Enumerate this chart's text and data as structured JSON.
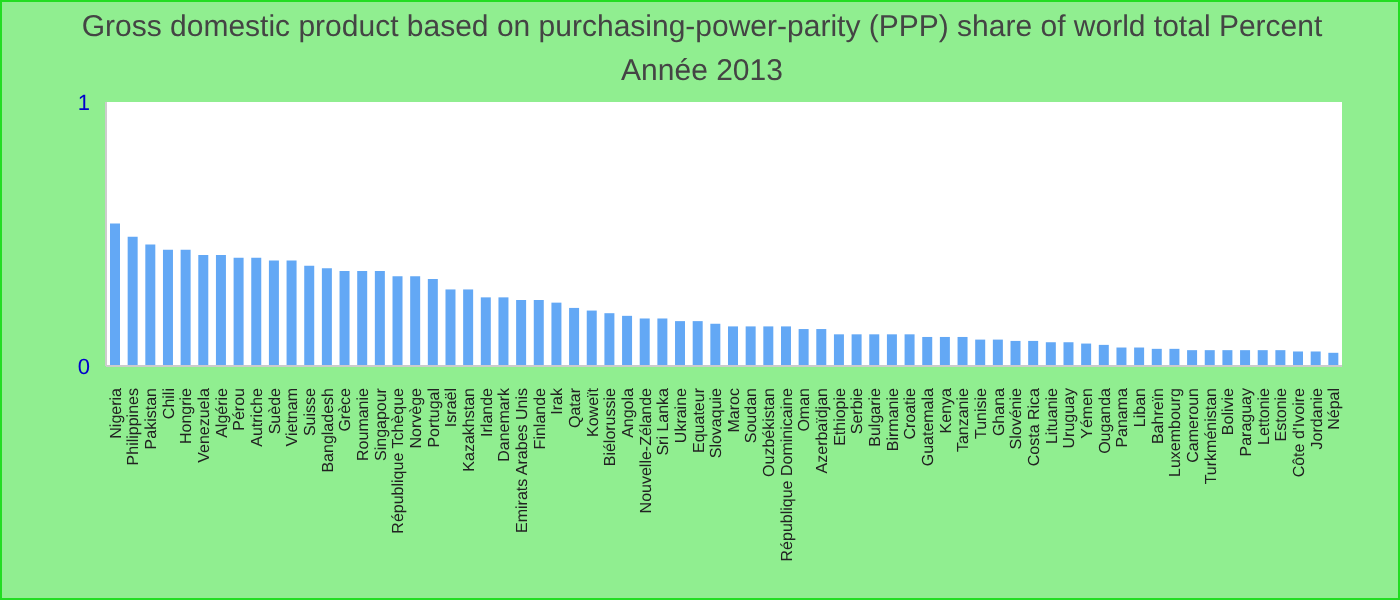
{
  "chart_data": {
    "type": "bar",
    "title": "Gross domestic product based on purchasing-power-parity (PPP) share of world total  Percent",
    "subtitle": "Année 2013",
    "categories": [
      "Nigeria",
      "Philippines",
      "Pakistan",
      "Chili",
      "Hongrie",
      "Venezuela",
      "Algérie",
      "Pérou",
      "Autriche",
      "Suède",
      "Vietnam",
      "Suisse",
      "Bangladesh",
      "Grèce",
      "Roumanie",
      "Singapour",
      "République Tchèque",
      "Norvège",
      "Portugal",
      "Israël",
      "Kazakhstan",
      "Irlande",
      "Danemark",
      "Emirats Arabes Unis",
      "Finlande",
      "Irak",
      "Qatar",
      "Koweït",
      "Biélorussie",
      "Angola",
      "Nouvelle-Zélande",
      "Sri Lanka",
      "Ukraine",
      "Equateur",
      "Slovaquie",
      "Maroc",
      "Soudan",
      "Ouzbékistan",
      "République Dominicaine",
      "Oman",
      "Azerbaïdjan",
      "Ethiopie",
      "Serbie",
      "Bulgarie",
      "Birmanie",
      "Croatie",
      "Guatemala",
      "Kenya",
      "Tanzanie",
      "Tunisie",
      "Ghana",
      "Slovénie",
      "Costa Rica",
      "Lituanie",
      "Uruguay",
      "Yémen",
      "Ouganda",
      "Panama",
      "Liban",
      "Bahreïn",
      "Luxembourg",
      "Cameroun",
      "Turkménistan",
      "Bolivie",
      "Paraguay",
      "Lettonie",
      "Estonie",
      "Côte d'Ivoire",
      "Jordanie",
      "Népal"
    ],
    "values": [
      0.54,
      0.49,
      0.46,
      0.44,
      0.44,
      0.42,
      0.42,
      0.41,
      0.41,
      0.4,
      0.4,
      0.38,
      0.37,
      0.36,
      0.36,
      0.36,
      0.34,
      0.34,
      0.33,
      0.29,
      0.29,
      0.26,
      0.26,
      0.25,
      0.25,
      0.24,
      0.22,
      0.21,
      0.2,
      0.19,
      0.18,
      0.18,
      0.17,
      0.17,
      0.16,
      0.15,
      0.15,
      0.15,
      0.15,
      0.14,
      0.14,
      0.12,
      0.12,
      0.12,
      0.12,
      0.12,
      0.11,
      0.11,
      0.11,
      0.1,
      0.1,
      0.095,
      0.095,
      0.09,
      0.09,
      0.085,
      0.08,
      0.07,
      0.07,
      0.065,
      0.065,
      0.06,
      0.06,
      0.06,
      0.06,
      0.06,
      0.06,
      0.055,
      0.055,
      0.05
    ],
    "color": "#63a8f5",
    "ylim": [
      0,
      1
    ],
    "yticks": [
      0,
      1
    ]
  }
}
